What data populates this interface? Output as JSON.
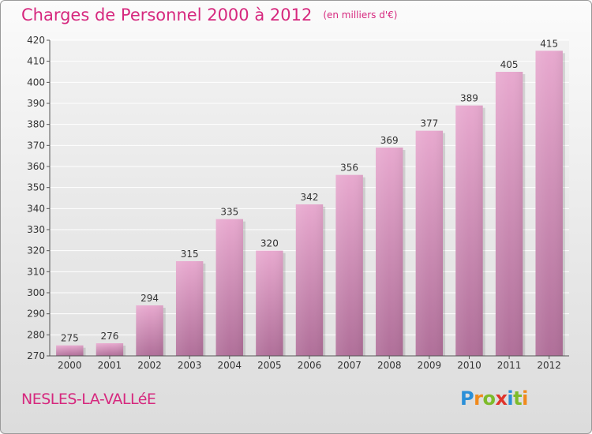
{
  "header": {
    "title": "Charges de Personnel 2000 à 2012",
    "subtitle": "(en milliers d'€)"
  },
  "footer": {
    "city": "NESLES-LA-VALLéE",
    "logo": [
      "P",
      "r",
      "o",
      "x",
      "i",
      "t",
      "i"
    ]
  },
  "colors": {
    "title": "#d6287e",
    "bar_top": "#e8a9cf",
    "bar_bottom": "#b06f99",
    "grid": "#ffffff"
  },
  "chart_data": {
    "type": "bar",
    "title": "Charges de Personnel 2000 à 2012",
    "subtitle": "(en milliers d'€)",
    "xlabel": "",
    "ylabel": "",
    "categories": [
      "2000",
      "2001",
      "2002",
      "2003",
      "2004",
      "2005",
      "2006",
      "2007",
      "2008",
      "2009",
      "2010",
      "2011",
      "2012"
    ],
    "values": [
      275,
      276,
      294,
      315,
      335,
      320,
      342,
      356,
      369,
      377,
      389,
      405,
      415
    ],
    "ylim": [
      270,
      420
    ],
    "yticks": [
      270,
      280,
      290,
      300,
      310,
      320,
      330,
      340,
      350,
      360,
      370,
      380,
      390,
      400,
      410,
      420
    ],
    "grid": true,
    "data_labels": true
  }
}
